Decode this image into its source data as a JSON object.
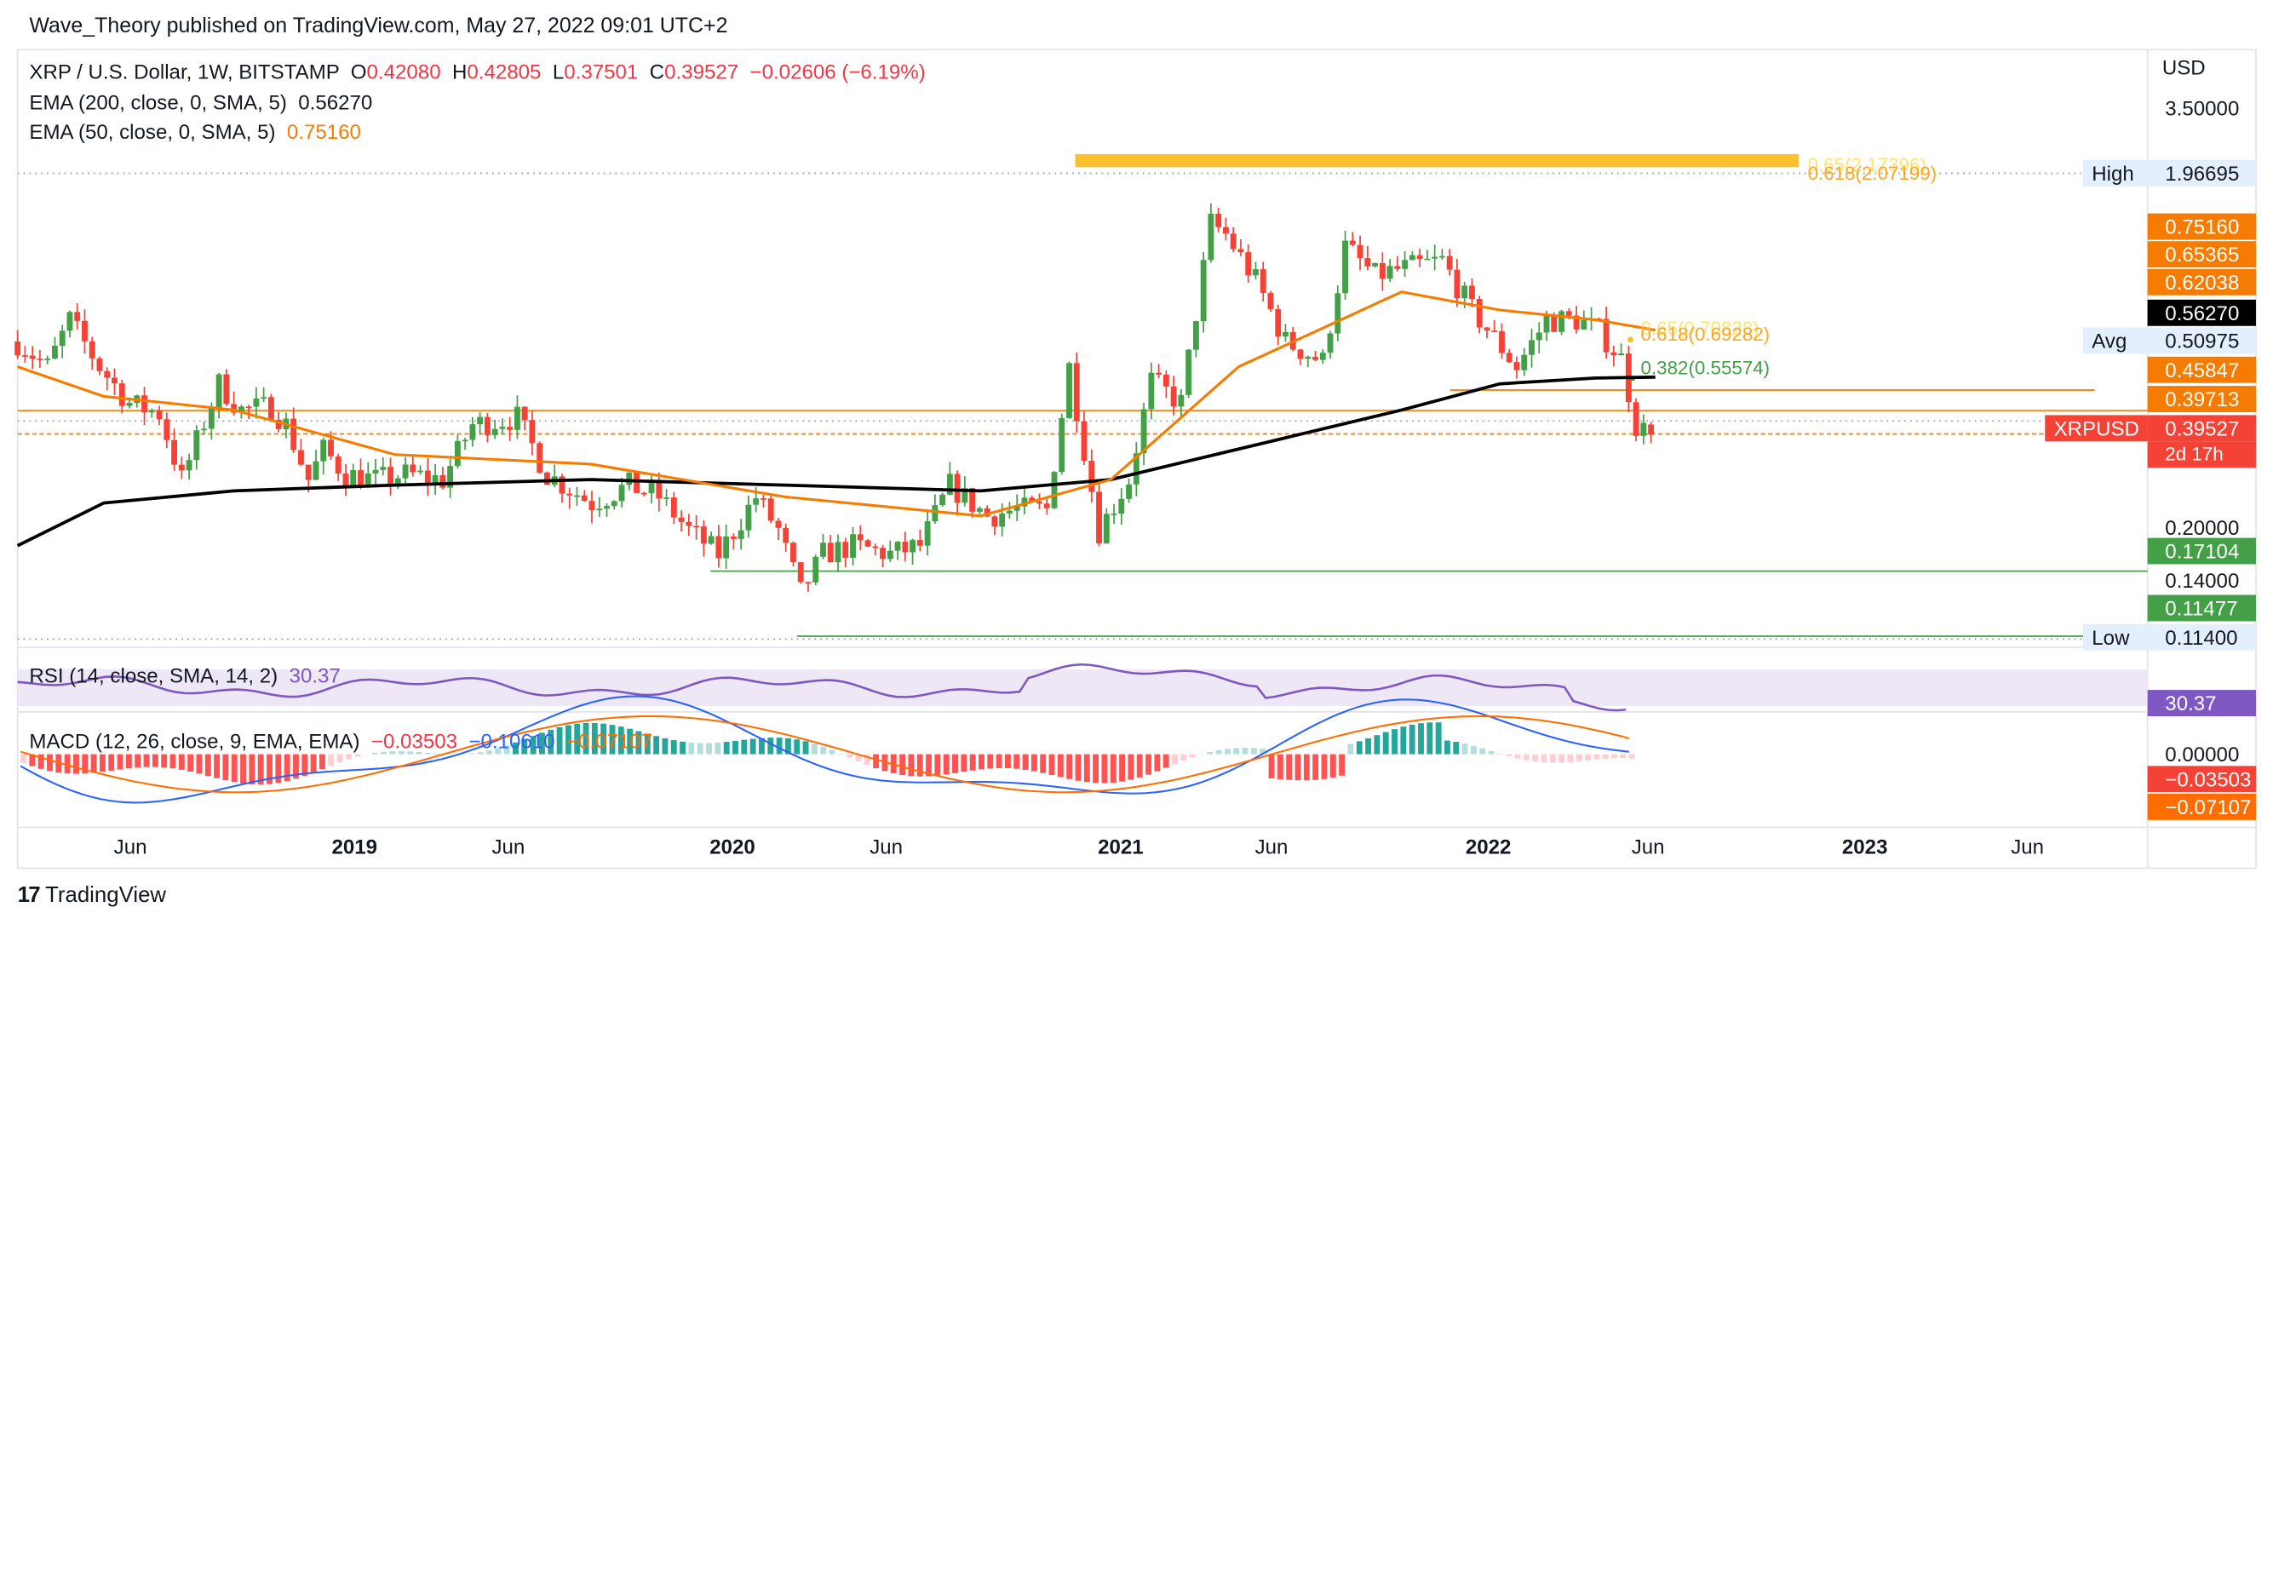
{
  "header": {
    "publisher": "Wave_Theory published on TradingView.com, May 27, 2022 09:01 UTC+2"
  },
  "symbol_line": {
    "symbol": "XRP / U.S. Dollar, 1W, BITSTAMP",
    "o_label": "O",
    "o_value": "0.42080",
    "h_label": "H",
    "h_value": "0.42805",
    "l_label": "L",
    "l_value": "0.37501",
    "c_label": "C",
    "c_value": "0.39527",
    "change": "−0.02606 (−6.19%)"
  },
  "indicators": {
    "ema200_label": "EMA (200, close, 0, SMA, 5)",
    "ema200_value": "0.56270",
    "ema50_label": "EMA (50, close, 0, SMA, 5)",
    "ema50_value": "0.75160",
    "rsi_label": "RSI (14, close, SMA, 14, 2)",
    "rsi_value": "30.37",
    "macd_label": "MACD (12, 26, close, 9, EMA, EMA)",
    "macd_hist": "−0.03503",
    "macd_line": "−0.10610",
    "macd_signal": "−0.07107"
  },
  "price_axis": {
    "currency": "USD",
    "tick_350": "3.50000",
    "tick_020": "0.20000",
    "tick_014": "0.14000"
  },
  "labels": {
    "high_label": "High",
    "high_value": "1.96695",
    "avg_label": "Avg",
    "avg_value": "0.50975",
    "low_label": "Low",
    "low_value": "0.11400",
    "ema50_tag": "0.75160",
    "tag_065": "0.65365",
    "tag_062": "0.62038",
    "ema200_tag": "0.56270",
    "tag_0458": "0.45847",
    "tag_0397": "0.39713",
    "ticker_tag": "XRPUSD",
    "price_tag": "0.39527",
    "countdown": "2d 17h",
    "tag_0171": "0.17104",
    "tag_0114": "0.11477",
    "rsi_tag": "30.37",
    "macd_zero": "0.00000",
    "macd_hist_tag": "−0.03503",
    "macd_signal_tag": "−0.07107"
  },
  "fib_labels": {
    "fib_top_a": "0.65(2.17396)",
    "fib_top_b": "0.618(2.07199)",
    "fib_mid_a": "0.65(0.70828)",
    "fib_mid_b": "0.618(0.69282)",
    "fib_382": "0.382(0.55574)"
  },
  "x_axis": [
    "Jun",
    "2019",
    "Jun",
    "2020",
    "Jun",
    "2021",
    "Jun",
    "2022",
    "Jun",
    "2023",
    "Jun"
  ],
  "footer": {
    "brand": "TradingView"
  },
  "colors": {
    "up": "#43a047",
    "down": "#f44336",
    "ema200": "#000000",
    "ema50": "#f57c00",
    "rsi": "#7e57c2",
    "macd": "#2962ff",
    "signal": "#ff6d00",
    "fib": "#fbc02d",
    "support": "#43a047"
  },
  "chart_data": {
    "type": "candlestick",
    "timeframe": "1W",
    "symbol": "XRPUSD",
    "scale": "log",
    "x_range": [
      "2018-03-12",
      "2023-09-01"
    ],
    "y_range": [
      0.108,
      4.2
    ],
    "candle_close_series": [
      [
        "2018-03-12",
        0.7
      ],
      [
        "2018-04-09",
        0.6
      ],
      [
        "2018-04-30",
        0.8
      ],
      [
        "2018-05-28",
        0.6
      ],
      [
        "2018-06-25",
        0.48
      ],
      [
        "2018-07-23",
        0.45
      ],
      [
        "2018-08-13",
        0.3
      ],
      [
        "2018-09-17",
        0.54
      ],
      [
        "2018-10-08",
        0.46
      ],
      [
        "2018-11-05",
        0.47
      ],
      [
        "2018-11-19",
        0.42
      ],
      [
        "2018-12-10",
        0.3
      ],
      [
        "2018-12-24",
        0.36
      ],
      [
        "2019-01-14",
        0.31
      ],
      [
        "2019-02-11",
        0.3
      ],
      [
        "2019-03-11",
        0.31
      ],
      [
        "2019-04-15",
        0.3
      ],
      [
        "2019-05-13",
        0.42
      ],
      [
        "2019-06-24",
        0.44
      ],
      [
        "2019-07-22",
        0.31
      ],
      [
        "2019-09-02",
        0.26
      ],
      [
        "2019-10-07",
        0.29
      ],
      [
        "2019-11-04",
        0.27
      ],
      [
        "2019-12-02",
        0.22
      ],
      [
        "2019-12-30",
        0.19
      ],
      [
        "2020-02-03",
        0.27
      ],
      [
        "2020-02-24",
        0.22
      ],
      [
        "2020-03-16",
        0.15
      ],
      [
        "2020-04-06",
        0.19
      ],
      [
        "2020-05-04",
        0.2
      ],
      [
        "2020-06-08",
        0.19
      ],
      [
        "2020-07-06",
        0.2
      ],
      [
        "2020-08-03",
        0.29
      ],
      [
        "2020-09-07",
        0.24
      ],
      [
        "2020-10-05",
        0.25
      ],
      [
        "2020-11-02",
        0.25
      ],
      [
        "2020-11-23",
        0.6
      ],
      [
        "2020-12-21",
        0.22
      ],
      [
        "2021-01-18",
        0.3
      ],
      [
        "2021-02-08",
        0.55
      ],
      [
        "2021-03-08",
        0.48
      ],
      [
        "2021-04-05",
        1.45
      ],
      [
        "2021-04-19",
        1.35
      ],
      [
        "2021-05-17",
        1.02
      ],
      [
        "2021-06-14",
        0.7
      ],
      [
        "2021-07-19",
        0.62
      ],
      [
        "2021-08-09",
        1.25
      ],
      [
        "2021-09-06",
        1.05
      ],
      [
        "2021-10-04",
        1.1
      ],
      [
        "2021-11-08",
        1.15
      ],
      [
        "2021-12-06",
        0.85
      ],
      [
        "2022-01-17",
        0.6
      ],
      [
        "2022-02-14",
        0.8
      ],
      [
        "2022-03-14",
        0.8
      ],
      [
        "2022-04-04",
        0.75
      ],
      [
        "2022-04-25",
        0.63
      ],
      [
        "2022-05-09",
        0.42
      ],
      [
        "2022-05-23",
        0.39527
      ]
    ],
    "ema200": [
      [
        "2018-03-12",
        0.2
      ],
      [
        "2018-06-01",
        0.26
      ],
      [
        "2018-10-01",
        0.28
      ],
      [
        "2019-03-01",
        0.29
      ],
      [
        "2019-09-01",
        0.3
      ],
      [
        "2020-03-01",
        0.29
      ],
      [
        "2020-09-01",
        0.28
      ],
      [
        "2021-01-01",
        0.3
      ],
      [
        "2021-06-01",
        0.38
      ],
      [
        "2021-10-01",
        0.46
      ],
      [
        "2022-01-01",
        0.54
      ],
      [
        "2022-04-01",
        0.56
      ],
      [
        "2022-05-27",
        0.5627
      ]
    ],
    "ema50": [
      [
        "2018-03-12",
        0.6
      ],
      [
        "2018-06-01",
        0.5
      ],
      [
        "2018-10-01",
        0.46
      ],
      [
        "2019-03-01",
        0.35
      ],
      [
        "2019-09-01",
        0.33
      ],
      [
        "2020-03-01",
        0.27
      ],
      [
        "2020-09-01",
        0.24
      ],
      [
        "2021-01-01",
        0.3
      ],
      [
        "2021-05-01",
        0.6
      ],
      [
        "2021-10-01",
        0.95
      ],
      [
        "2022-01-01",
        0.85
      ],
      [
        "2022-04-01",
        0.8
      ],
      [
        "2022-05-27",
        0.7516
      ]
    ],
    "levels": [
      {
        "label": "High",
        "value": 1.96695
      },
      {
        "label": "Avg",
        "value": 0.50975
      },
      {
        "label": "Low",
        "value": 0.114
      },
      {
        "value": 0.45847
      },
      {
        "value": 0.39713
      },
      {
        "value": 0.17104
      },
      {
        "value": 0.11477
      }
    ],
    "fibonacci": [
      {
        "ratio": 0.65,
        "value": 2.17396
      },
      {
        "ratio": 0.618,
        "value": 2.07199
      },
      {
        "ratio": 0.65,
        "value": 0.70828
      },
      {
        "ratio": 0.618,
        "value": 0.69282
      },
      {
        "ratio": 0.382,
        "value": 0.55574
      }
    ],
    "rsi_last": 30.37,
    "macd_last": {
      "hist": -0.03503,
      "macd": -0.1061,
      "signal": -0.07107
    }
  }
}
